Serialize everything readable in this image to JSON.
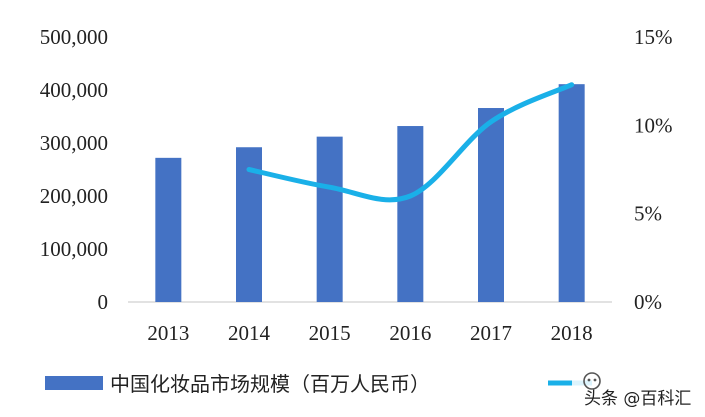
{
  "chart_data": {
    "type": "bar",
    "categories": [
      "2013",
      "2014",
      "2015",
      "2016",
      "2017",
      "2018"
    ],
    "series": [
      {
        "name": "中国化妆品市场规模（百万人民币）",
        "type": "bar",
        "axis": "left",
        "color": "#4472C4",
        "values": [
          272000,
          292000,
          312000,
          332000,
          366000,
          411000
        ]
      },
      {
        "name": "",
        "type": "line",
        "axis": "right",
        "color": "#1AB0E8",
        "values": [
          null,
          7.5,
          6.5,
          6.0,
          10.2,
          12.3
        ]
      }
    ],
    "y_left": {
      "min": 0,
      "max": 500000,
      "ticks": [
        "0",
        "100,000",
        "200,000",
        "300,000",
        "400,000",
        "500,000"
      ]
    },
    "y_right": {
      "min": 0,
      "max": 15,
      "ticks": [
        "0%",
        "5%",
        "10%",
        "15%"
      ]
    },
    "legend_position": "bottom",
    "grid": false
  },
  "watermark": {
    "text": "头条 @百科汇"
  }
}
